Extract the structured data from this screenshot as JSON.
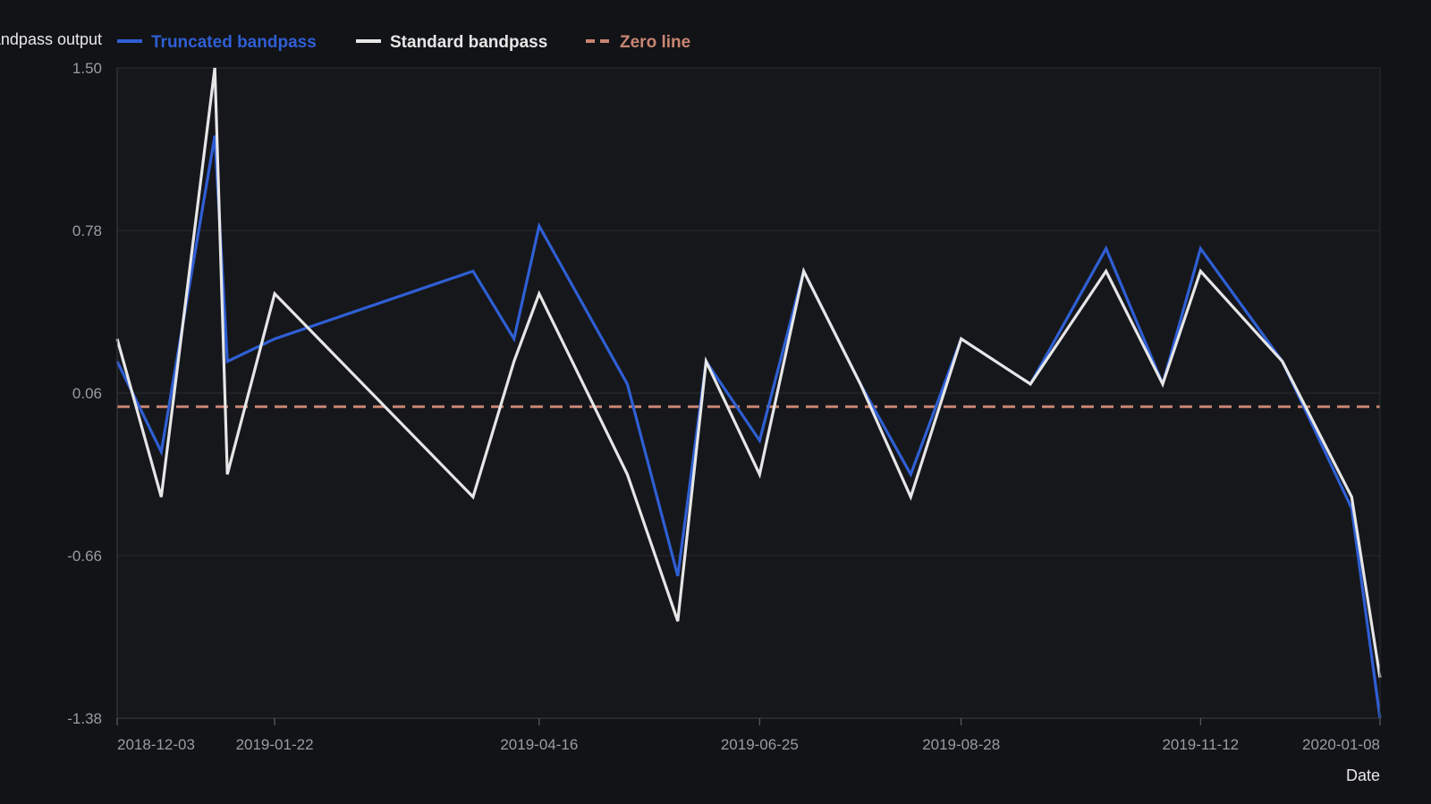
{
  "chart_data": {
    "type": "line",
    "title": "",
    "xlabel": "Date",
    "ylabel": "Bandpass output",
    "x_axis": {
      "type": "date",
      "range": [
        "2018-12-03",
        "2020-01-08"
      ],
      "tick_labels": [
        "2018-12-03",
        "2019-01-22",
        "2019-04-16",
        "2019-06-25",
        "2019-08-28",
        "2019-11-12",
        "2020-01-08"
      ]
    },
    "y_axis": {
      "range": [
        -1.38,
        1.5
      ],
      "tick_labels": [
        "1.50",
        "0.78",
        "0.06",
        "-0.66",
        "-1.38"
      ]
    },
    "grid": true,
    "legend_position": "top-left",
    "colors": {
      "background": "#121316",
      "plot_background": "#16171b",
      "grid": "#2a2c31",
      "truncated": "#2f5fd4",
      "standard": "#e6e6e6",
      "zero": "#c98573"
    },
    "x": [
      "2018-12-03",
      "2018-12-17",
      "2019-01-03",
      "2019-01-07",
      "2019-01-22",
      "2019-02-12",
      "2019-03-26",
      "2019-04-08",
      "2019-04-16",
      "2019-05-14",
      "2019-05-30",
      "2019-06-08",
      "2019-06-25",
      "2019-07-09",
      "2019-07-27",
      "2019-08-12",
      "2019-08-28",
      "2019-09-19",
      "2019-10-13",
      "2019-10-31",
      "2019-11-12",
      "2019-12-08",
      "2019-12-30",
      "2020-01-08"
    ],
    "series": [
      {
        "name": "Truncated bandpass",
        "style": "solid",
        "values": [
          0.2,
          -0.2,
          1.2,
          0.2,
          0.3,
          0.4,
          0.6,
          0.3,
          0.8,
          0.1,
          -0.75,
          0.2,
          -0.15,
          0.6,
          0.1,
          -0.3,
          0.3,
          0.1,
          0.7,
          0.1,
          0.7,
          0.2,
          -0.45,
          -1.38
        ]
      },
      {
        "name": "Standard bandpass",
        "style": "solid",
        "values": [
          0.3,
          -0.4,
          1.5,
          -0.3,
          0.5,
          0.2,
          -0.4,
          0.2,
          0.5,
          -0.3,
          -0.95,
          0.2,
          -0.3,
          0.6,
          0.1,
          -0.4,
          0.3,
          0.1,
          0.6,
          0.1,
          0.6,
          0.2,
          -0.4,
          -1.2
        ]
      },
      {
        "name": "Zero line",
        "style": "dashed",
        "values": [
          0,
          0,
          0,
          0,
          0,
          0,
          0,
          0,
          0,
          0,
          0,
          0,
          0,
          0,
          0,
          0,
          0,
          0,
          0,
          0,
          0,
          0,
          0,
          0
        ]
      }
    ]
  }
}
